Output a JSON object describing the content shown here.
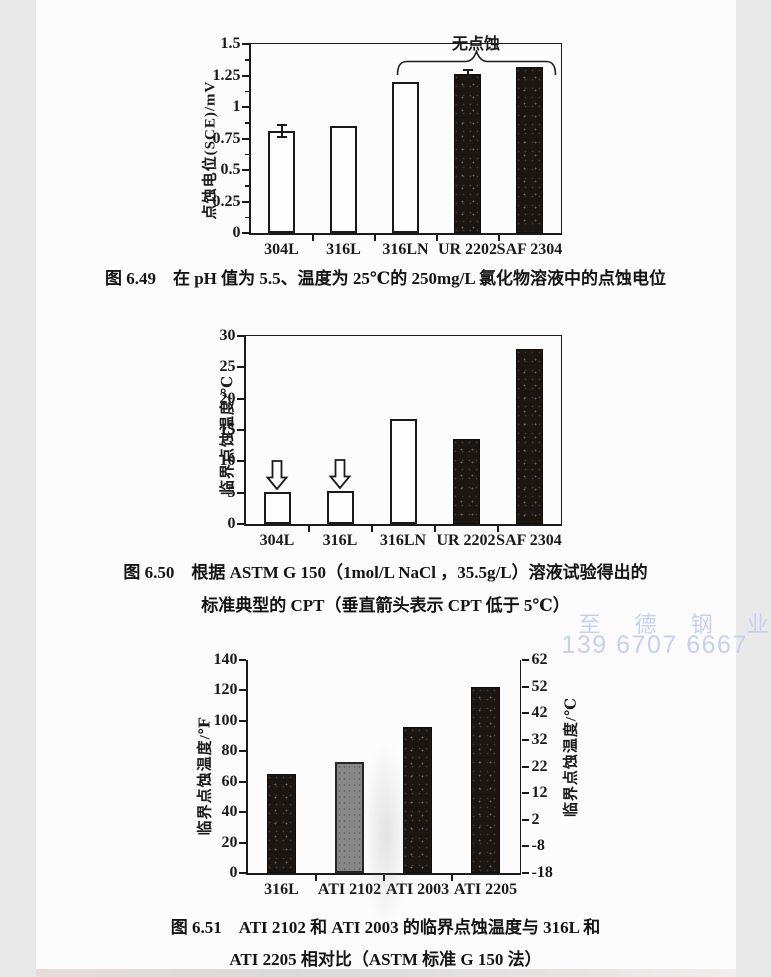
{
  "watermark": {
    "line1": "至 德 钢 业",
    "line2": "139 6707 6667",
    "color": "#c7cff3"
  },
  "colors": {
    "ink": "#1a1a1a",
    "page_bg": "#fcfcfc",
    "dark_bar": "#1b1612",
    "gray_bar": "#878787",
    "outline_bar_fill": "#fdfdfd",
    "watermark": "#c7cff3"
  },
  "chart_data": [
    {
      "id": "fig-6-49",
      "type": "bar",
      "caption_lines": [
        "图 6.49　在 pH 值为 5.5、温度为 25℃的 250mg/L 氯化物溶液中的点蚀电位"
      ],
      "categories": [
        "304L",
        "316L",
        "316LN",
        "UR 2202",
        "SAF 2304"
      ],
      "values": [
        0.81,
        0.85,
        1.2,
        1.26,
        1.32
      ],
      "errors": [
        0.05,
        0,
        0,
        0.03,
        0
      ],
      "bar_styles": [
        "outline",
        "outline",
        "outline",
        "dark",
        "dark"
      ],
      "ylabel": "点蚀电位(SCE)/mV",
      "xlabel": "",
      "ylim": [
        0,
        1.5
      ],
      "yticks": [
        "0",
        "0.25",
        "0.5",
        "0.75",
        "1",
        "1.25",
        "1.5"
      ],
      "minor_tick_step": 0.125,
      "grid": false,
      "annotation": {
        "text": "无点蚀",
        "span_categories": [
          "316LN",
          "UR 2202",
          "SAF 2304"
        ]
      }
    },
    {
      "id": "fig-6-50",
      "type": "bar",
      "caption_lines": [
        "图 6.50　根据 ASTM G 150（1mol/L NaCl ，35.5g/L）溶液试验得出的",
        "标准典型的 CPT（垂直箭头表示 CPT 低于 5℃）"
      ],
      "categories": [
        "304L",
        "316L",
        "316LN",
        "UR 2202",
        "SAF 2304"
      ],
      "values": [
        5.1,
        5.3,
        16.7,
        13.5,
        28
      ],
      "below_detection_arrows": [
        true,
        true,
        false,
        false,
        false
      ],
      "bar_styles": [
        "outline",
        "outline",
        "outline",
        "dark",
        "dark"
      ],
      "ylabel": "临界点蚀温度/℃",
      "xlabel": "",
      "ylim": [
        0,
        30
      ],
      "yticks": [
        "0",
        "5",
        "10",
        "15",
        "20",
        "25",
        "30"
      ],
      "grid": false
    },
    {
      "id": "fig-6-51",
      "type": "bar",
      "caption_lines": [
        "图 6.51　ATI 2102 和 ATI 2003 的临界点蚀温度与 316L 和",
        "ATI 2205 相对比（ASTM 标准 G 150 法）"
      ],
      "categories": [
        "316L",
        "ATI 2102",
        "ATI 2003",
        "ATI 2205"
      ],
      "values": [
        65,
        73,
        96,
        122
      ],
      "bar_styles": [
        "dark",
        "gray",
        "dark",
        "dark"
      ],
      "ylabel": "临界点蚀温度/℉",
      "xlabel": "",
      "ylim": [
        0,
        140
      ],
      "yticks": [
        "0",
        "20",
        "40",
        "60",
        "80",
        "100",
        "120",
        "140"
      ],
      "right_axis": {
        "label": "临界点蚀温度/℃",
        "ylim": [
          -18,
          62
        ],
        "ticks": [
          "-18",
          "-8",
          "2",
          "12",
          "22",
          "32",
          "42",
          "52",
          "62"
        ]
      },
      "grid": false
    }
  ]
}
